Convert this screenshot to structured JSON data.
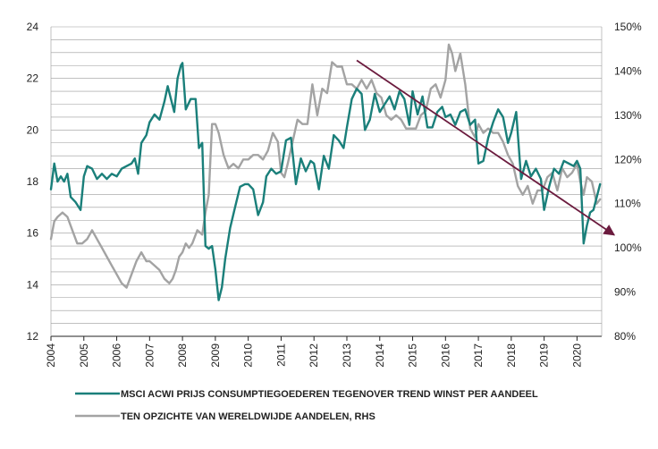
{
  "chart_data": {
    "type": "line",
    "colors": {
      "series_left": "#1a7f7a",
      "series_right": "#a3a3a3",
      "trend_arrow": "#6b1b3e",
      "grid": "#9a9a9a"
    },
    "grid": true,
    "legend_position": "bottom",
    "ylim_left": [
      12,
      24
    ],
    "ylim_right": [
      80,
      150
    ],
    "yticks_left": [
      "12",
      "14",
      "16",
      "18",
      "20",
      "22",
      "24"
    ],
    "yticks_right": [
      "80%",
      "90%",
      "100%",
      "110%",
      "120%",
      "130%",
      "140%",
      "150%"
    ],
    "xticks": [
      "2004",
      "2005",
      "2006",
      "2007",
      "2008",
      "2009",
      "2010",
      "2011",
      "2012",
      "2013",
      "2014",
      "2015",
      "2016",
      "2017",
      "2018",
      "2019",
      "2020"
    ],
    "xlim": [
      2004,
      2020.75
    ],
    "series": [
      {
        "name": "MSCI ACWI PRIJS CONSUMPTIEGOEDEREN TEGENOVER TREND WINST PER AANDEEL",
        "axis": "left",
        "x": [
          2004.0,
          2004.1,
          2004.2,
          2004.3,
          2004.4,
          2004.5,
          2004.6,
          2004.75,
          2004.9,
          2005.0,
          2005.1,
          2005.25,
          2005.4,
          2005.55,
          2005.7,
          2005.85,
          2006.0,
          2006.15,
          2006.3,
          2006.45,
          2006.55,
          2006.65,
          2006.75,
          2006.9,
          2007.0,
          2007.15,
          2007.3,
          2007.45,
          2007.55,
          2007.65,
          2007.75,
          2007.85,
          2007.95,
          2008.0,
          2008.1,
          2008.25,
          2008.4,
          2008.5,
          2008.6,
          2008.7,
          2008.8,
          2008.9,
          2009.0,
          2009.1,
          2009.2,
          2009.3,
          2009.45,
          2009.6,
          2009.75,
          2009.9,
          2010.0,
          2010.15,
          2010.3,
          2010.45,
          2010.55,
          2010.7,
          2010.85,
          2011.0,
          2011.15,
          2011.3,
          2011.45,
          2011.6,
          2011.75,
          2011.9,
          2012.0,
          2012.15,
          2012.3,
          2012.45,
          2012.6,
          2012.75,
          2012.9,
          2013.0,
          2013.15,
          2013.3,
          2013.45,
          2013.55,
          2013.7,
          2013.85,
          2014.0,
          2014.15,
          2014.3,
          2014.45,
          2014.6,
          2014.75,
          2014.9,
          2015.0,
          2015.15,
          2015.3,
          2015.45,
          2015.6,
          2015.75,
          2015.9,
          2016.0,
          2016.15,
          2016.3,
          2016.45,
          2016.6,
          2016.75,
          2016.9,
          2017.0,
          2017.15,
          2017.3,
          2017.45,
          2017.6,
          2017.75,
          2017.9,
          2018.0,
          2018.15,
          2018.3,
          2018.45,
          2018.6,
          2018.75,
          2018.9,
          2019.0,
          2019.15,
          2019.3,
          2019.45,
          2019.6,
          2019.75,
          2019.9,
          2020.0,
          2020.1,
          2020.2,
          2020.3,
          2020.4,
          2020.5,
          2020.6,
          2020.7
        ],
        "y": [
          17.7,
          18.7,
          18.0,
          18.2,
          18.0,
          18.3,
          17.4,
          17.2,
          16.9,
          18.2,
          18.6,
          18.5,
          18.1,
          18.3,
          18.1,
          18.3,
          18.2,
          18.5,
          18.6,
          18.7,
          18.9,
          18.3,
          19.5,
          19.8,
          20.3,
          20.6,
          20.4,
          21.1,
          21.7,
          21.2,
          20.7,
          22.0,
          22.5,
          22.6,
          20.8,
          21.2,
          21.2,
          19.3,
          19.5,
          15.5,
          15.4,
          15.5,
          14.6,
          13.4,
          13.9,
          15.0,
          16.2,
          17.0,
          17.8,
          17.9,
          17.9,
          17.7,
          16.7,
          17.2,
          18.2,
          18.5,
          18.3,
          18.4,
          19.6,
          19.7,
          17.9,
          18.9,
          18.4,
          18.8,
          18.7,
          17.7,
          19.0,
          18.5,
          19.8,
          19.6,
          19.3,
          20.1,
          21.2,
          21.6,
          21.4,
          20.0,
          20.4,
          21.4,
          20.7,
          21.0,
          21.3,
          20.8,
          21.5,
          21.2,
          20.2,
          21.5,
          20.6,
          21.3,
          20.1,
          20.1,
          20.7,
          20.9,
          20.5,
          20.6,
          20.2,
          20.7,
          20.8,
          20.2,
          20.4,
          18.7,
          18.8,
          19.7,
          20.3,
          20.8,
          20.5,
          19.5,
          19.9,
          20.7,
          18.1,
          18.8,
          18.2,
          18.5,
          18.1,
          16.9,
          17.8,
          18.5,
          18.3,
          18.8,
          18.7,
          18.6,
          18.8,
          18.5,
          15.6,
          16.3,
          16.8,
          16.9,
          17.4,
          17.9
        ]
      },
      {
        "name": "TEN OPZICHTE VAN WERELDWIJDE AANDELEN, RHS",
        "axis": "right",
        "x": [
          2004.0,
          2004.1,
          2004.2,
          2004.35,
          2004.5,
          2004.65,
          2004.8,
          2004.95,
          2005.1,
          2005.25,
          2005.4,
          2005.55,
          2005.7,
          2005.85,
          2006.0,
          2006.15,
          2006.3,
          2006.45,
          2006.6,
          2006.75,
          2006.9,
          2007.0,
          2007.15,
          2007.3,
          2007.45,
          2007.6,
          2007.7,
          2007.8,
          2007.9,
          2008.0,
          2008.1,
          2008.2,
          2008.3,
          2008.45,
          2008.6,
          2008.7,
          2008.8,
          2008.9,
          2009.0,
          2009.1,
          2009.25,
          2009.4,
          2009.55,
          2009.7,
          2009.85,
          2010.0,
          2010.15,
          2010.3,
          2010.45,
          2010.6,
          2010.75,
          2010.9,
          2011.0,
          2011.1,
          2011.2,
          2011.35,
          2011.5,
          2011.65,
          2011.8,
          2011.95,
          2012.1,
          2012.25,
          2012.4,
          2012.55,
          2012.7,
          2012.85,
          2013.0,
          2013.15,
          2013.3,
          2013.45,
          2013.6,
          2013.75,
          2013.9,
          2014.05,
          2014.2,
          2014.35,
          2014.5,
          2014.65,
          2014.8,
          2014.95,
          2015.1,
          2015.25,
          2015.4,
          2015.55,
          2015.7,
          2015.85,
          2016.0,
          2016.1,
          2016.2,
          2016.3,
          2016.45,
          2016.6,
          2016.75,
          2016.9,
          2017.0,
          2017.15,
          2017.3,
          2017.45,
          2017.6,
          2017.75,
          2017.9,
          2018.05,
          2018.2,
          2018.35,
          2018.5,
          2018.65,
          2018.8,
          2018.95,
          2019.1,
          2019.25,
          2019.4,
          2019.55,
          2019.7,
          2019.85,
          2020.0,
          2020.1,
          2020.2,
          2020.3,
          2020.45,
          2020.6,
          2020.7
        ],
        "y": [
          102,
          106,
          107,
          108,
          107,
          104,
          101,
          101,
          102,
          104,
          102,
          100,
          98,
          96,
          94,
          92,
          91,
          94,
          97,
          99,
          97,
          97,
          96,
          95,
          93,
          92,
          93,
          95,
          98,
          99,
          101,
          100,
          101,
          104,
          103,
          108,
          112,
          128,
          128,
          126,
          121,
          118,
          119,
          118,
          120,
          120,
          121,
          121,
          120,
          122,
          126,
          124,
          117,
          116,
          119,
          124,
          129,
          128,
          128,
          137,
          130,
          136,
          135,
          142,
          141,
          141,
          137,
          137,
          136,
          138,
          136,
          138,
          135,
          134,
          130,
          129,
          130,
          129,
          127,
          127,
          127,
          130,
          131,
          136,
          137,
          134,
          138,
          146,
          144,
          140,
          144,
          137,
          127,
          125,
          128,
          126,
          127,
          126,
          126,
          124,
          121,
          119,
          114,
          112,
          114,
          110,
          113,
          113,
          116,
          117,
          113,
          118,
          116,
          117,
          119,
          115,
          112,
          116,
          115,
          110,
          111
        ]
      }
    ],
    "trend_arrow": {
      "from": [
        2013.3,
        22.7
      ],
      "to": [
        2020.75,
        16.0
      ]
    }
  }
}
